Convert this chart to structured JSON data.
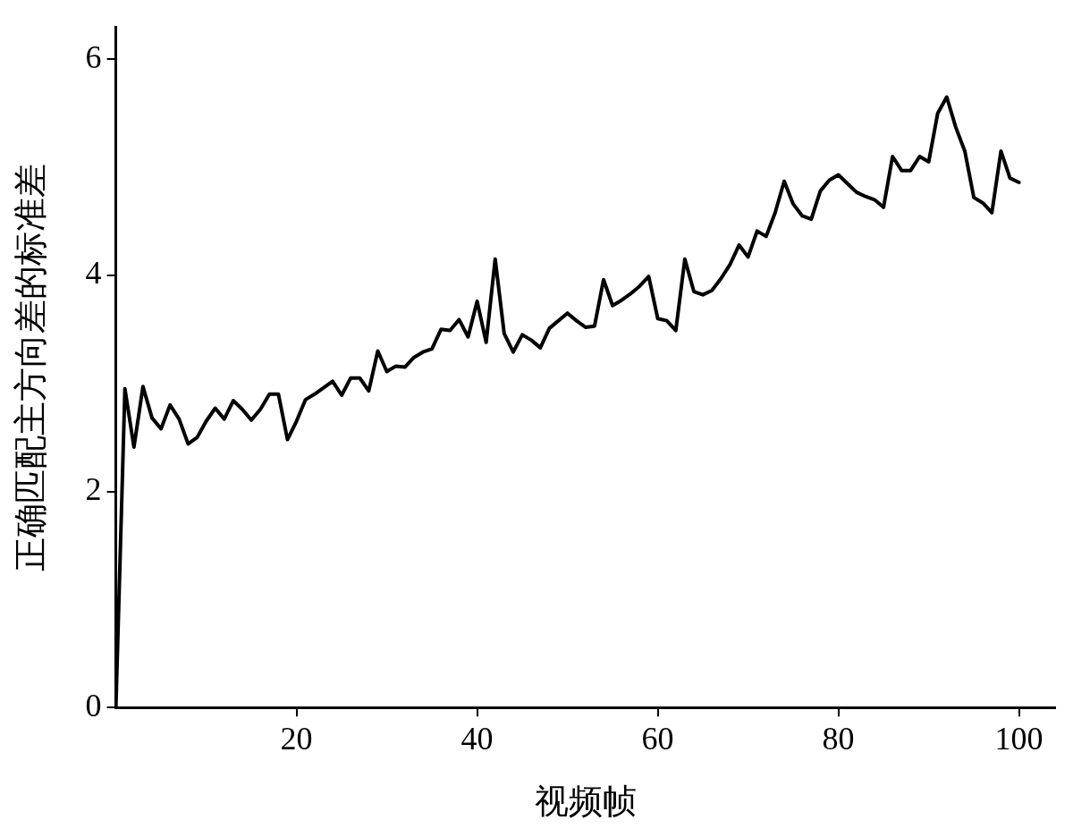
{
  "chart_data": {
    "type": "line",
    "xlabel": "视频帧",
    "ylabel": "正确匹配主方向差的标准差",
    "x": [
      0,
      1,
      2,
      3,
      4,
      5,
      6,
      7,
      8,
      9,
      10,
      11,
      12,
      13,
      14,
      15,
      16,
      17,
      18,
      19,
      20,
      21,
      22,
      23,
      24,
      25,
      26,
      27,
      28,
      29,
      30,
      31,
      32,
      33,
      34,
      35,
      36,
      37,
      38,
      39,
      40,
      41,
      42,
      43,
      44,
      45,
      46,
      47,
      48,
      49,
      50,
      51,
      52,
      53,
      54,
      55,
      56,
      57,
      58,
      59,
      60,
      61,
      62,
      63,
      64,
      65,
      66,
      67,
      68,
      69,
      70,
      71,
      72,
      73,
      74,
      75,
      76,
      77,
      78,
      79,
      80,
      81,
      82,
      83,
      84,
      85,
      86,
      87,
      88,
      89,
      90,
      91,
      92,
      93,
      94,
      95,
      96,
      97,
      98,
      99,
      100
    ],
    "series": [
      {
        "color": "#000000",
        "values": [
          0,
          2.95,
          2.41,
          2.97,
          2.68,
          2.58,
          2.8,
          2.67,
          2.44,
          2.5,
          2.65,
          2.77,
          2.67,
          2.84,
          2.76,
          2.66,
          2.76,
          2.9,
          2.9,
          2.48,
          2.65,
          2.85,
          2.9,
          2.96,
          3.02,
          2.89,
          3.05,
          3.05,
          2.93,
          3.3,
          3.11,
          3.16,
          3.15,
          3.24,
          3.29,
          3.32,
          3.5,
          3.49,
          3.59,
          3.43,
          3.76,
          3.38,
          4.15,
          3.46,
          3.29,
          3.45,
          3.4,
          3.33,
          3.51,
          3.58,
          3.65,
          3.58,
          3.52,
          3.53,
          3.96,
          3.72,
          3.77,
          3.83,
          3.9,
          3.99,
          3.6,
          3.58,
          3.49,
          4.15,
          3.85,
          3.82,
          3.86,
          3.97,
          4.1,
          4.28,
          4.17,
          4.41,
          4.36,
          4.58,
          4.87,
          4.66,
          4.55,
          4.52,
          4.78,
          4.88,
          4.93,
          4.85,
          4.77,
          4.73,
          4.7,
          4.63,
          5.1,
          4.97,
          4.97,
          5.1,
          5.05,
          5.5,
          5.65,
          5.37,
          5.15,
          4.72,
          4.67,
          4.58,
          5.15,
          4.9,
          4.86
        ]
      }
    ],
    "xlim": [
      0,
      104
    ],
    "ylim": [
      0,
      6.3
    ],
    "xticks": [
      20,
      40,
      60,
      80,
      100
    ],
    "yticks": [
      0,
      2,
      4,
      6
    ],
    "grid": false,
    "legend": false,
    "marker": "none",
    "line_style": "solid"
  }
}
